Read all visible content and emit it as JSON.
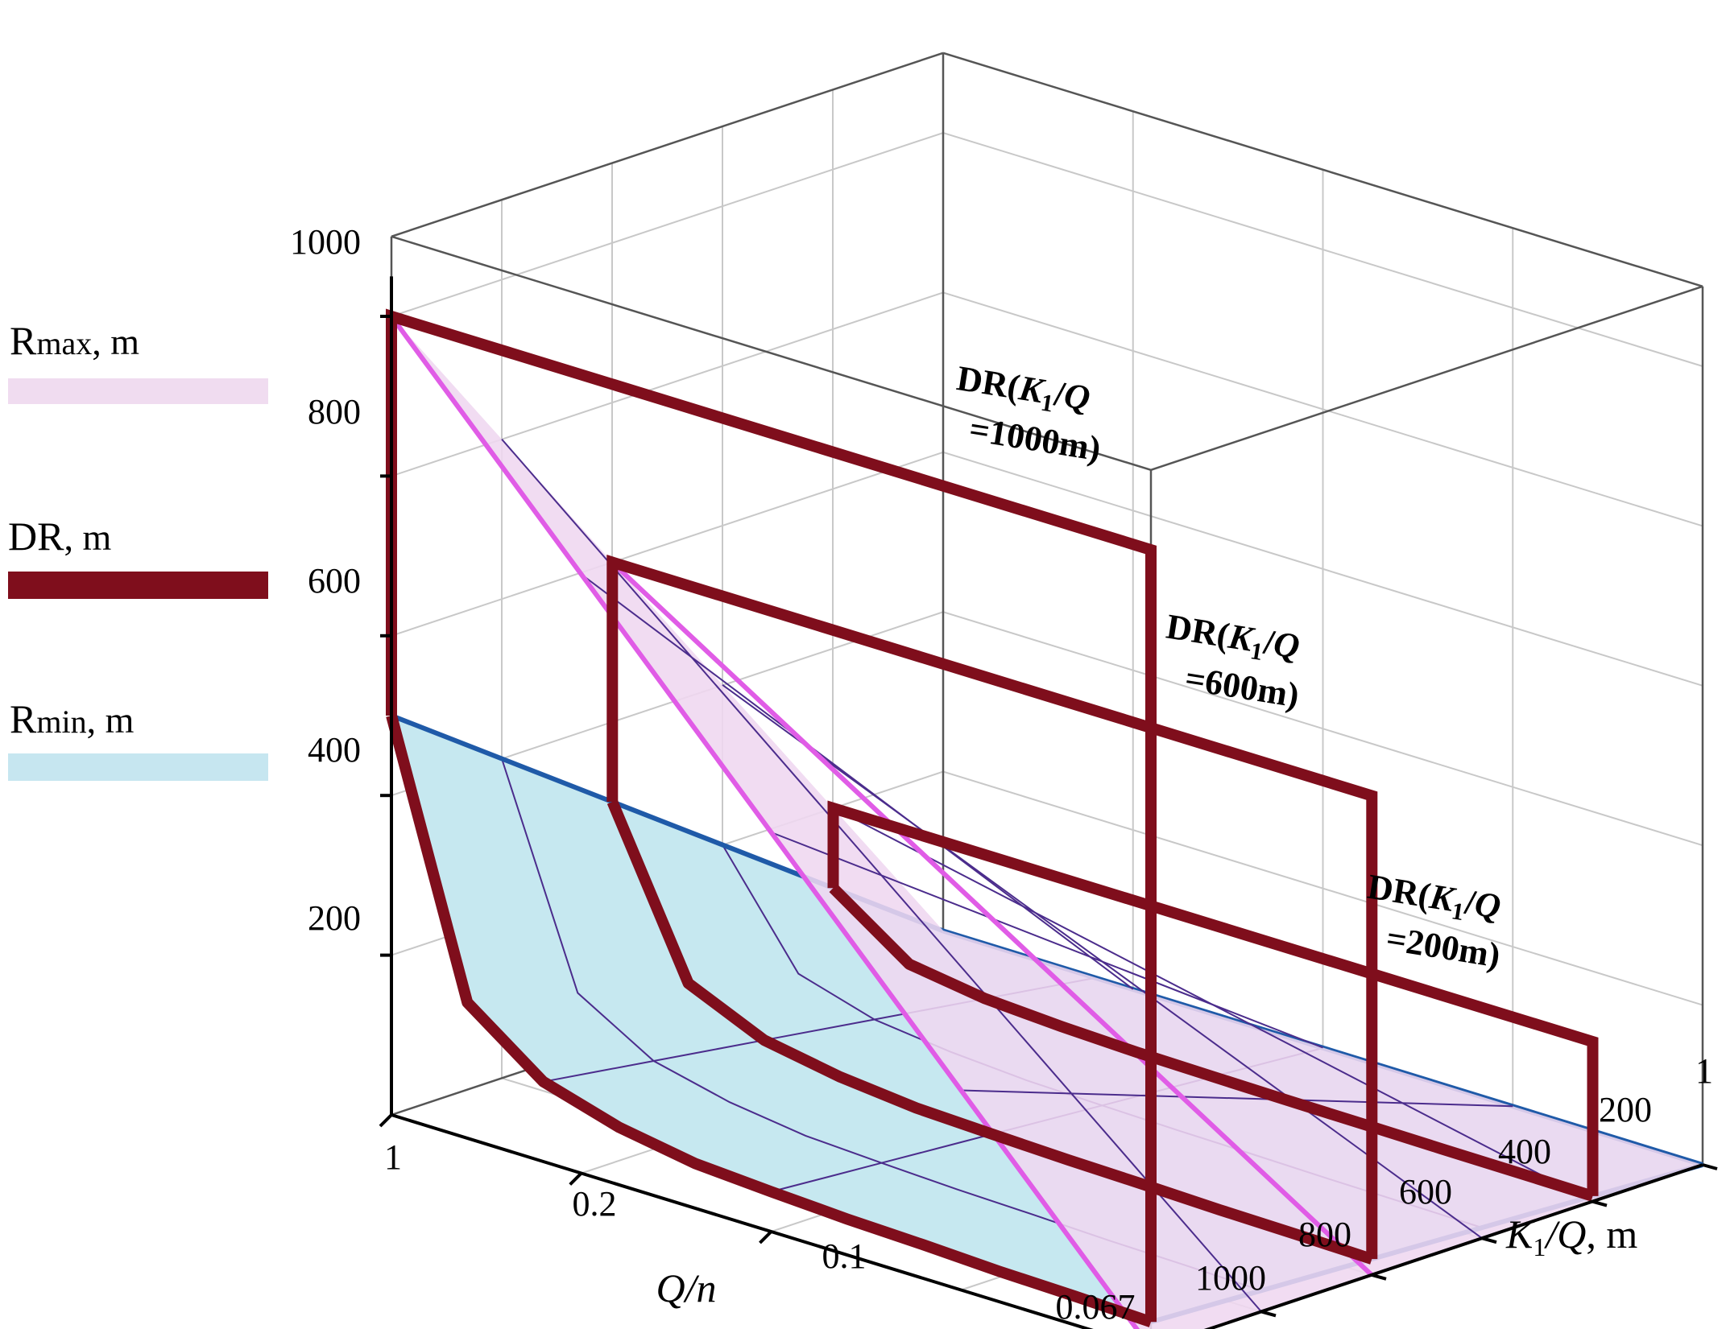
{
  "chart_data": {
    "type": "3d-surface",
    "legend": [
      {
        "key": "rmax",
        "label_main": "R",
        "label_sub": "max",
        "label_tail": ", m",
        "color": "#f0dcf0",
        "style": "band"
      },
      {
        "key": "dr",
        "label_main": "DR",
        "label_sub": "",
        "label_tail": ", m",
        "color": "#7f0e1c",
        "style": "thick"
      },
      {
        "key": "rmin",
        "label_main": "R",
        "label_sub": "min",
        "label_tail": ", m",
        "color": "#c6e6f0",
        "style": "band"
      }
    ],
    "legend_placement": "left",
    "colors": {
      "rmax_fill": "#efd7f0",
      "rmax_edge": "#e05ce6",
      "rmin_fill": "#c6e8f0",
      "rmin_edge": "#1f5aa8",
      "dr": "#7f0e1c",
      "mesh": "#4b2c8c"
    },
    "z_axis": {
      "ticks": [
        "200",
        "400",
        "600",
        "800",
        "1000"
      ],
      "range": [
        0,
        1000
      ]
    },
    "x_axis": {
      "label_italic": "Q",
      "label_rest": "/n",
      "ticks": [
        "1",
        "0.2",
        "0.1",
        "0.067"
      ]
    },
    "y_axis": {
      "label_italic_1": "K",
      "label_sub": "1",
      "label_italic_2": "/Q",
      "label_rest": ", m",
      "ticks": [
        "1",
        "200",
        "400",
        "600",
        "800",
        "1000"
      ],
      "range": [
        1,
        1000
      ]
    },
    "Q_over_n": [
      1,
      0.333,
      0.2,
      0.143,
      0.111,
      0.1,
      0.091,
      0.083,
      0.077,
      0.071,
      0.067
    ],
    "K1_over_Q": [
      1,
      200,
      400,
      600,
      800,
      1000
    ],
    "series": [
      {
        "name": "Rmax",
        "formula_note": "",
        "values_at_Qn_1": [
          1,
          200,
          400,
          600,
          800,
          1000
        ],
        "values_at_Qn_0.067": [
          0,
          0,
          0,
          0,
          0,
          0
        ]
      },
      {
        "name": "Rmin",
        "values_at_K1Q_1000": [
          500,
          170,
          100,
          72,
          56,
          50,
          45,
          42,
          38,
          36,
          33
        ]
      }
    ],
    "annotations": [
      {
        "line1_a": "DR(",
        "line1_k": "K",
        "line1_sub": "1",
        "line1_b": "/",
        "line1_q": "Q",
        "line2": "=1000m)"
      },
      {
        "line1_a": "DR(",
        "line1_k": "K",
        "line1_sub": "1",
        "line1_b": "/",
        "line1_q": "Q",
        "line2": "=600m)"
      },
      {
        "line1_a": "DR(",
        "line1_k": "K",
        "line1_sub": "1",
        "line1_b": "/",
        "line1_q": "Q",
        "line2": "=200m)"
      }
    ]
  }
}
